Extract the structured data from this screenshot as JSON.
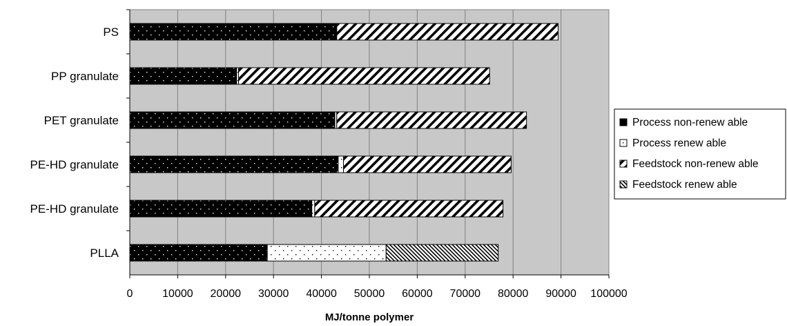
{
  "chart_data": {
    "type": "bar",
    "orientation": "horizontal",
    "stacked": true,
    "categories": [
      "PS",
      "PP granulate",
      "PET granulate",
      "PE-HD granulate",
      "PE-HD granulate",
      "PLLA"
    ],
    "series": [
      {
        "name": "Process non-renew able",
        "pattern": "dots-on-black",
        "values": [
          43200,
          22300,
          42800,
          43500,
          38000,
          28700
        ]
      },
      {
        "name": "Process renew able",
        "pattern": "dots-on-white",
        "values": [
          0,
          400,
          400,
          1100,
          600,
          24800
        ]
      },
      {
        "name": "Feedstock non-renew able",
        "pattern": "hatch-diagonal",
        "values": [
          46200,
          52400,
          39600,
          35000,
          39300,
          0
        ]
      },
      {
        "name": "Feedstock renew able",
        "pattern": "dense-hatch",
        "values": [
          0,
          0,
          0,
          0,
          0,
          23400
        ]
      }
    ],
    "xlabel": "MJ/tonne polymer",
    "xlim": [
      0,
      100000
    ],
    "xticks": [
      "0",
      "10000",
      "20000",
      "30000",
      "40000",
      "50000",
      "60000",
      "70000",
      "80000",
      "90000",
      "100000"
    ],
    "grid": "vertical",
    "plot_background": "#c8c8c8",
    "legend_placement": "right"
  }
}
